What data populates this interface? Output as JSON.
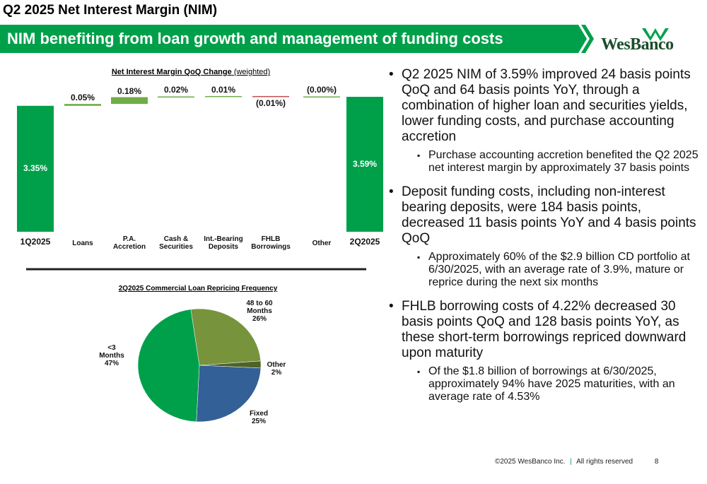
{
  "header": {
    "title": "Q2 2025 Net Interest Margin (NIM)",
    "banner": "NIM benefiting from loan growth and management of funding costs",
    "logo": "WesBanco"
  },
  "chart_data": [
    {
      "type": "waterfall",
      "title": "Net Interest Margin QoQ Change",
      "subtitle": "(weighted)",
      "categories": [
        "1Q2025",
        "Loans",
        "P.A. Accretion",
        "Cash & Securities",
        "Int.-Bearing Deposits",
        "FHLB Borrowings",
        "Other",
        "2Q2025"
      ],
      "values": [
        3.35,
        0.05,
        0.18,
        0.02,
        0.01,
        -0.01,
        0.0,
        3.59
      ],
      "value_labels": [
        "3.35%",
        "0.05%",
        "0.18%",
        "0.02%",
        "0.01%",
        "(0.01%)",
        "(0.00%)",
        "3.59%"
      ],
      "colors": {
        "total": "#00a04b",
        "increase": "#70ad47",
        "decrease": "#c0504d"
      }
    },
    {
      "type": "pie",
      "title": "2Q2025 Commercial Loan Repricing Frequency",
      "categories": [
        "48 to 60 Months",
        "Other",
        "Fixed",
        "<3 Months"
      ],
      "values": [
        26,
        2,
        25,
        47
      ],
      "value_labels": [
        "26%",
        "2%",
        "25%",
        "47%"
      ],
      "colors": [
        "#77933c",
        "#4f6228",
        "#336096",
        "#00a04b"
      ]
    }
  ],
  "bullets": [
    {
      "text": "Q2 2025 NIM of 3.59% improved 24 basis points QoQ and 64 basis points YoY, through a combination of higher loan and securities yields, lower funding costs, and purchase accounting accretion",
      "sub": [
        "Purchase accounting accretion benefited the Q2 2025 net interest margin by approximately 37 basis points"
      ]
    },
    {
      "text": "Deposit funding costs, including non-interest bearing deposits, were 184 basis points, decreased 11 basis points YoY and 4 basis points QoQ",
      "sub": [
        "Approximately 60% of the $2.9 billion CD portfolio at 6/30/2025, with an average rate of 3.9%, mature or reprice during the next six months"
      ]
    },
    {
      "text": "FHLB borrowing costs of 4.22% decreased 30 basis points QoQ and 128 basis points YoY, as these short-term borrowings repriced downward upon maturity",
      "sub": [
        "Of the $1.8 billion of borrowings at 6/30/2025, approximately 94% have 2025 maturities, with an average rate of 4.53%"
      ]
    }
  ],
  "footer": {
    "copyright": "©2025 WesBanco Inc.",
    "separator": "|",
    "rights": "All rights reserved",
    "page": "8"
  }
}
